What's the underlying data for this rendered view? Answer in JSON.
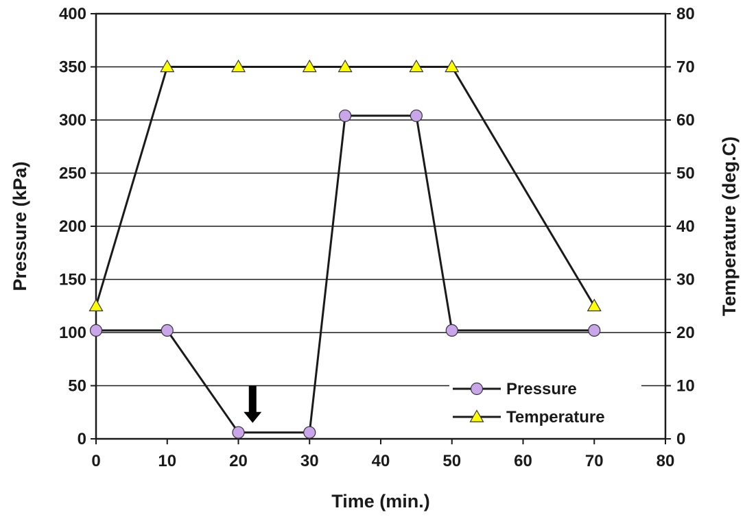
{
  "chart_data": {
    "type": "line",
    "title": "",
    "xlabel": "Time (min.)",
    "ylabel": "Pressure (kPa)",
    "y2label": "Temperature (deg.C)",
    "xlim": [
      0,
      80
    ],
    "ylim": [
      0,
      400
    ],
    "y2lim": [
      0,
      80
    ],
    "x_ticks": [
      "0",
      "10",
      "20",
      "30",
      "40",
      "50",
      "60",
      "70",
      "80"
    ],
    "y_ticks": [
      "0",
      "50",
      "100",
      "150",
      "200",
      "250",
      "300",
      "350",
      "400"
    ],
    "y2_ticks": [
      "0",
      "10",
      "20",
      "30",
      "40",
      "50",
      "60",
      "70",
      "80"
    ],
    "grid": "horizontal",
    "legend_position": "bottom-right",
    "series": [
      {
        "name": "Pressure",
        "axis": "left",
        "marker": "circle",
        "color": "#c9a6ea",
        "x": [
          0,
          10,
          20,
          30,
          35,
          45,
          50,
          70
        ],
        "values": [
          102,
          102,
          6,
          6,
          304,
          304,
          102,
          102
        ]
      },
      {
        "name": "Temperature",
        "axis": "right",
        "marker": "triangle",
        "color": "#ffff00",
        "x": [
          0,
          10,
          20,
          30,
          35,
          45,
          50,
          70
        ],
        "values": [
          25,
          70,
          70,
          70,
          70,
          70,
          70,
          25
        ]
      }
    ],
    "annotations": [
      {
        "type": "arrow-down",
        "x": 22,
        "y_from": 50,
        "y_to": 15
      }
    ]
  }
}
